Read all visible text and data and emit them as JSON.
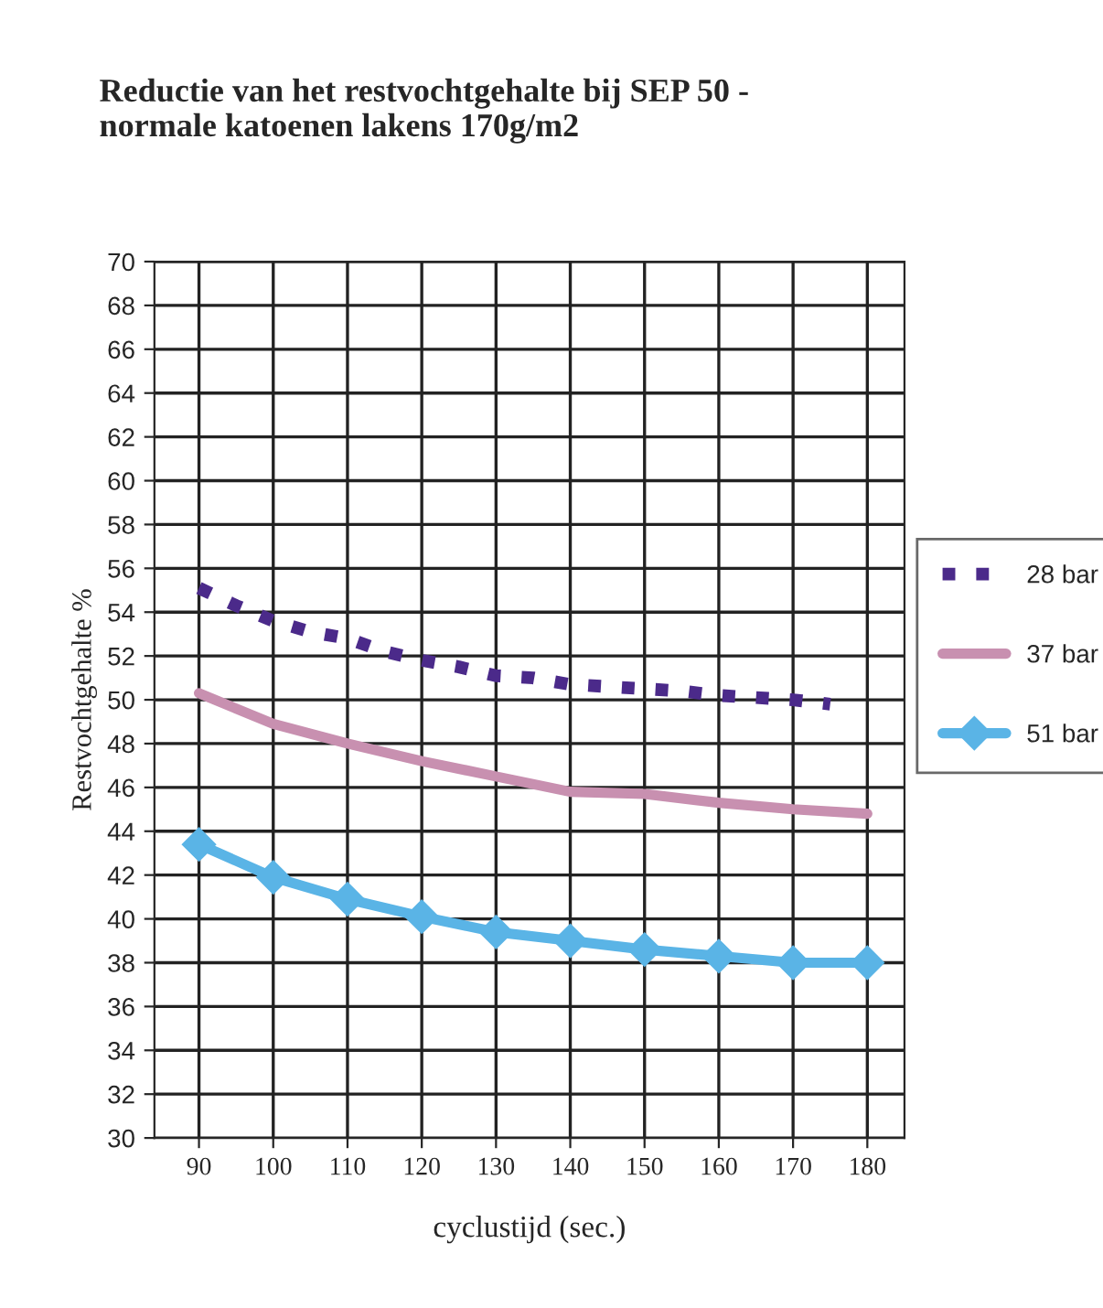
{
  "chart_data": {
    "type": "line",
    "title": "Reductie van het restvochtgehalte bij SEP 50 -\nnormale katoenen lakens 170g/m2",
    "xlabel": "cyclustijd (sec.)",
    "ylabel": "Restvochtgehalte %",
    "xlim": [
      84,
      185
    ],
    "xticks": [
      90,
      100,
      110,
      120,
      130,
      140,
      150,
      160,
      170,
      180
    ],
    "ylim": [
      30,
      70
    ],
    "yticks": [
      30,
      32,
      34,
      36,
      38,
      40,
      42,
      44,
      46,
      48,
      50,
      52,
      54,
      56,
      58,
      60,
      62,
      64,
      66,
      68,
      70
    ],
    "grid": true,
    "legend": "right",
    "series": [
      {
        "name": "28 bar",
        "color": "#4b2a8a",
        "line_style": "dotted",
        "marker": "none",
        "x": [
          90,
          95,
          100,
          105,
          110,
          115,
          120,
          125,
          130,
          135,
          140,
          145,
          150,
          155,
          160,
          165,
          170,
          175
        ],
        "values": [
          55.1,
          54.3,
          53.6,
          53.1,
          52.8,
          52.2,
          51.8,
          51.5,
          51.1,
          51.0,
          50.7,
          50.6,
          50.5,
          50.4,
          50.2,
          50.1,
          50.0,
          49.8
        ]
      },
      {
        "name": "37 bar",
        "color": "#c890b0",
        "line_style": "solid",
        "marker": "none",
        "x": [
          90,
          100,
          110,
          120,
          130,
          140,
          150,
          160,
          170,
          180
        ],
        "values": [
          50.3,
          48.9,
          48.0,
          47.2,
          46.5,
          45.8,
          45.7,
          45.3,
          45.0,
          44.8
        ]
      },
      {
        "name": "51 bar",
        "color": "#5ab4e6",
        "line_style": "solid",
        "marker": "diamond",
        "x": [
          90,
          100,
          110,
          120,
          130,
          140,
          150,
          160,
          170,
          180
        ],
        "values": [
          43.4,
          41.9,
          40.9,
          40.1,
          39.4,
          39.0,
          38.6,
          38.3,
          38.0,
          38.0
        ]
      }
    ]
  }
}
